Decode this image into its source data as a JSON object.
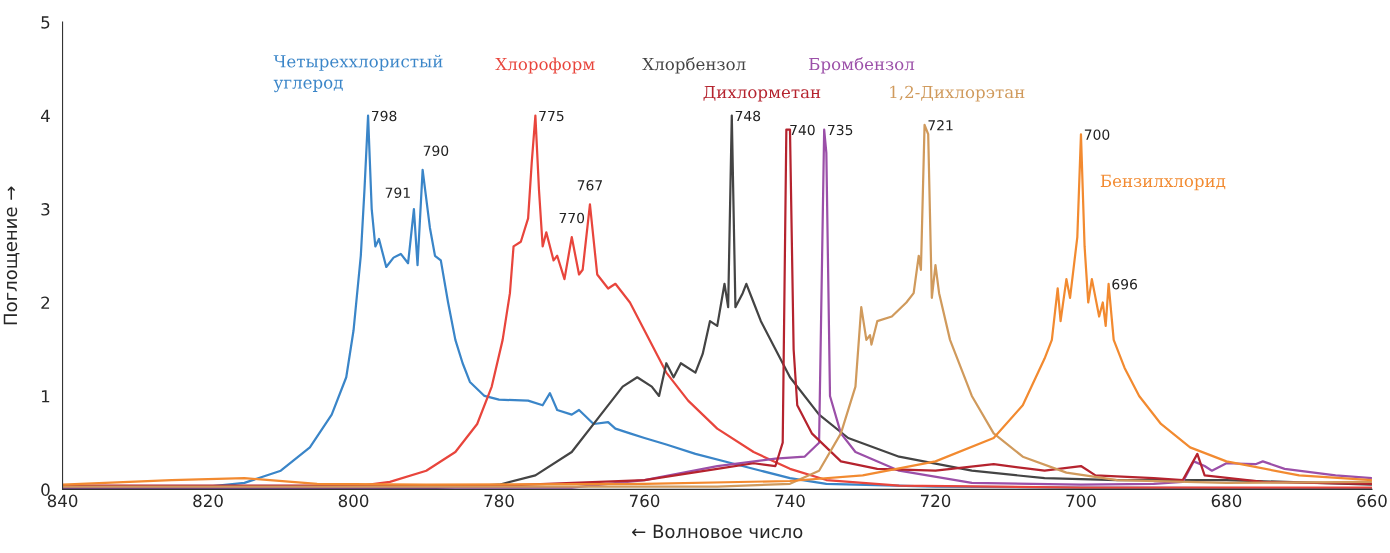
{
  "chart_data": {
    "type": "line",
    "xlabel": "← Волновое число",
    "ylabel": "Поглощение →",
    "xlim": [
      840,
      660
    ],
    "xticks": [
      840,
      820,
      800,
      780,
      760,
      740,
      720,
      700,
      680,
      660
    ],
    "ylim": [
      0,
      5
    ],
    "yticks": [
      0,
      1,
      2,
      3,
      4,
      5
    ],
    "grid": false,
    "legend": false,
    "marker": "none",
    "line_style": "solid",
    "series": [
      {
        "name": "Четыреххлористый\nуглерод",
        "color": "#3a85c8",
        "x": [
          840,
          820,
          815,
          810,
          806,
          803,
          801,
          800,
          799,
          798.5,
          798,
          797.5,
          797,
          796.5,
          795.5,
          794.5,
          793.5,
          792.5,
          791.7,
          791.2,
          790.5,
          789.5,
          788.8,
          788,
          787,
          786,
          785,
          784,
          782,
          780,
          776,
          774,
          773,
          772,
          770,
          769,
          767,
          765,
          764,
          762,
          760,
          757,
          753,
          748,
          744,
          740,
          735,
          720,
          700,
          660
        ],
        "values": [
          0.02,
          0.03,
          0.07,
          0.2,
          0.45,
          0.8,
          1.2,
          1.7,
          2.5,
          3.2,
          4.0,
          3.0,
          2.6,
          2.68,
          2.38,
          2.48,
          2.52,
          2.42,
          3.0,
          2.4,
          3.42,
          2.8,
          2.5,
          2.45,
          2.0,
          1.6,
          1.35,
          1.15,
          1.0,
          0.96,
          0.95,
          0.9,
          1.03,
          0.85,
          0.8,
          0.85,
          0.7,
          0.72,
          0.65,
          0.6,
          0.55,
          0.48,
          0.38,
          0.28,
          0.2,
          0.12,
          0.06,
          0.03,
          0.02,
          0.01
        ]
      },
      {
        "name": "Хлороформ",
        "color": "#e8453c",
        "x": [
          840,
          800,
          795,
          790,
          786,
          783,
          781,
          779.5,
          778.5,
          778,
          777,
          776,
          775.5,
          775,
          774.5,
          774,
          773.5,
          772.5,
          772,
          771,
          770,
          769,
          768.5,
          767.5,
          766.5,
          765,
          764,
          762,
          760,
          757,
          754,
          750,
          745,
          740,
          735,
          725,
          700,
          660
        ],
        "values": [
          0.03,
          0.03,
          0.08,
          0.2,
          0.4,
          0.7,
          1.1,
          1.6,
          2.1,
          2.6,
          2.65,
          2.9,
          3.5,
          4.0,
          3.2,
          2.6,
          2.75,
          2.45,
          2.5,
          2.25,
          2.7,
          2.3,
          2.35,
          3.05,
          2.3,
          2.15,
          2.2,
          2.0,
          1.7,
          1.25,
          0.95,
          0.65,
          0.4,
          0.22,
          0.1,
          0.04,
          0.02,
          0.02
        ]
      },
      {
        "name": "Хлорбензол",
        "color": "#444444",
        "x": [
          840,
          790,
          780,
          775,
          770,
          766,
          763,
          761,
          759,
          758,
          757,
          756,
          755,
          753,
          752,
          751,
          750,
          749,
          748.5,
          748,
          747.5,
          746.5,
          746,
          745,
          744,
          742,
          740,
          736,
          732,
          725,
          715,
          705,
          695,
          680,
          660
        ],
        "values": [
          0.01,
          0.01,
          0.05,
          0.15,
          0.4,
          0.8,
          1.1,
          1.2,
          1.1,
          1.0,
          1.35,
          1.2,
          1.35,
          1.25,
          1.45,
          1.8,
          1.75,
          2.2,
          1.95,
          4.0,
          1.95,
          2.1,
          2.2,
          2.0,
          1.8,
          1.5,
          1.2,
          0.8,
          0.55,
          0.35,
          0.2,
          0.12,
          0.1,
          0.1,
          0.05
        ]
      },
      {
        "name": "Бромбензол",
        "color": "#9b4fa8",
        "x": [
          840,
          770,
          760,
          750,
          742,
          738,
          736,
          735.3,
          735,
          734.5,
          733,
          731,
          725,
          715,
          700,
          690,
          686,
          684.5,
          683,
          682,
          680,
          676,
          675,
          672,
          665,
          660
        ],
        "values": [
          0.02,
          0.02,
          0.1,
          0.25,
          0.33,
          0.35,
          0.5,
          3.85,
          3.6,
          1.0,
          0.6,
          0.4,
          0.2,
          0.07,
          0.05,
          0.06,
          0.08,
          0.3,
          0.25,
          0.2,
          0.28,
          0.27,
          0.3,
          0.22,
          0.15,
          0.12
        ]
      },
      {
        "name": "Дихлорметан",
        "color": "#b5232e",
        "x": [
          840,
          780,
          760,
          750,
          745,
          742,
          741,
          740.5,
          740,
          739.5,
          739,
          737,
          735,
          733,
          728,
          720,
          712,
          705,
          700,
          698,
          690,
          686,
          684,
          683,
          675,
          660
        ],
        "values": [
          0.04,
          0.04,
          0.1,
          0.22,
          0.28,
          0.25,
          0.5,
          3.85,
          3.85,
          1.5,
          0.9,
          0.6,
          0.45,
          0.3,
          0.22,
          0.2,
          0.27,
          0.2,
          0.25,
          0.15,
          0.12,
          0.1,
          0.38,
          0.15,
          0.08,
          0.06
        ]
      },
      {
        "name": "1,2-Дихлорэтан",
        "color": "#d09a5c",
        "x": [
          840,
          750,
          740,
          736,
          733,
          731,
          730.2,
          729.5,
          729,
          728.8,
          728,
          726,
          724,
          723,
          722.3,
          722,
          721.5,
          721,
          720.5,
          720,
          719.5,
          718,
          715,
          712,
          708,
          702,
          695,
          680,
          660
        ],
        "values": [
          0.03,
          0.03,
          0.06,
          0.2,
          0.6,
          1.1,
          1.95,
          1.6,
          1.65,
          1.55,
          1.8,
          1.85,
          2.0,
          2.1,
          2.5,
          2.35,
          3.9,
          3.8,
          2.05,
          2.4,
          2.1,
          1.6,
          1.0,
          0.6,
          0.35,
          0.18,
          0.1,
          0.07,
          0.08
        ]
      },
      {
        "name": "Бензилхлорид",
        "color": "#f28a30",
        "x": [
          840,
          825,
          815,
          805,
          790,
          760,
          740,
          730,
          720,
          712,
          708,
          705,
          704,
          703.2,
          702.8,
          702,
          701.5,
          700.5,
          700,
          699.5,
          699,
          698.5,
          697.5,
          697,
          696.6,
          696.2,
          695.5,
          694,
          692,
          689,
          685,
          680,
          670,
          660
        ],
        "values": [
          0.05,
          0.1,
          0.12,
          0.06,
          0.05,
          0.06,
          0.09,
          0.15,
          0.3,
          0.55,
          0.9,
          1.4,
          1.6,
          2.15,
          1.8,
          2.25,
          2.05,
          2.7,
          3.8,
          2.6,
          2.0,
          2.25,
          1.85,
          2.0,
          1.75,
          2.2,
          1.6,
          1.3,
          1.0,
          0.7,
          0.45,
          0.3,
          0.15,
          0.1
        ]
      }
    ],
    "annotations": [
      {
        "text": "798",
        "x": 798,
        "y": 4.0
      },
      {
        "text": "791",
        "x": 791.7,
        "y": 3.0
      },
      {
        "text": "790",
        "x": 790.5,
        "y": 3.42
      },
      {
        "text": "775",
        "x": 775,
        "y": 4.0
      },
      {
        "text": "770",
        "x": 770,
        "y": 2.7
      },
      {
        "text": "767",
        "x": 767.5,
        "y": 3.05
      },
      {
        "text": "748",
        "x": 748,
        "y": 4.0
      },
      {
        "text": "740",
        "x": 740.5,
        "y": 3.85
      },
      {
        "text": "735",
        "x": 735.3,
        "y": 3.85
      },
      {
        "text": "721",
        "x": 721.5,
        "y": 3.9
      },
      {
        "text": "700",
        "x": 700,
        "y": 3.8
      },
      {
        "text": "696",
        "x": 696.2,
        "y": 2.2
      }
    ]
  }
}
